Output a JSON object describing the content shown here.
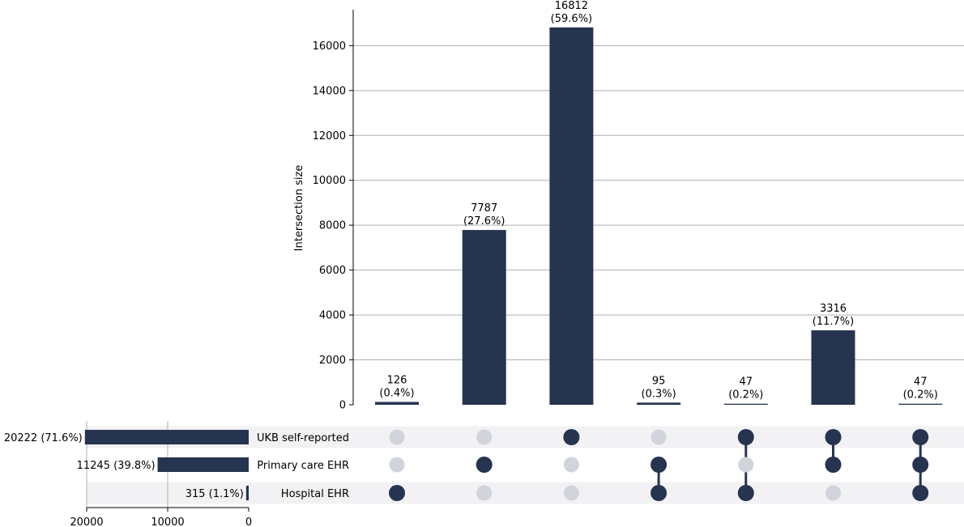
{
  "colors": {
    "bar": "#263450",
    "dot_on": "#263450",
    "dot_off": "#d1d4db",
    "band": "#f2f2f4",
    "grid": "#b0b0b0"
  },
  "chart_data": {
    "type": "bar",
    "subtype": "upset",
    "ylabel": "Intersection size",
    "ylim": [
      0,
      17600
    ],
    "yticks": [
      0,
      2000,
      4000,
      6000,
      8000,
      10000,
      12000,
      14000,
      16000
    ],
    "grid": true,
    "sets": [
      {
        "name": "UKB self-reported",
        "size": 20222,
        "label": "20222 (71.6%)"
      },
      {
        "name": "Primary care EHR",
        "size": 11245,
        "label": "11245 (39.8%)"
      },
      {
        "name": "Hospital EHR",
        "size": 315,
        "label": "315 (1.1%)"
      }
    ],
    "set_size_ticks": [
      20000,
      10000,
      0
    ],
    "set_size_xlim": [
      20000,
      0
    ],
    "intersections": [
      {
        "value": 126,
        "count_label": "126",
        "pct_label": "(0.4%)",
        "members": [
          false,
          false,
          true
        ]
      },
      {
        "value": 7787,
        "count_label": "7787",
        "pct_label": "(27.6%)",
        "members": [
          false,
          true,
          false
        ]
      },
      {
        "value": 16812,
        "count_label": "16812",
        "pct_label": "(59.6%)",
        "members": [
          true,
          false,
          false
        ]
      },
      {
        "value": 95,
        "count_label": "95",
        "pct_label": "(0.3%)",
        "members": [
          false,
          true,
          true
        ]
      },
      {
        "value": 47,
        "count_label": "47",
        "pct_label": "(0.2%)",
        "members": [
          true,
          false,
          true
        ]
      },
      {
        "value": 3316,
        "count_label": "3316",
        "pct_label": "(11.7%)",
        "members": [
          true,
          true,
          false
        ]
      },
      {
        "value": 47,
        "count_label": "47",
        "pct_label": "(0.2%)",
        "members": [
          true,
          true,
          true
        ]
      }
    ]
  }
}
